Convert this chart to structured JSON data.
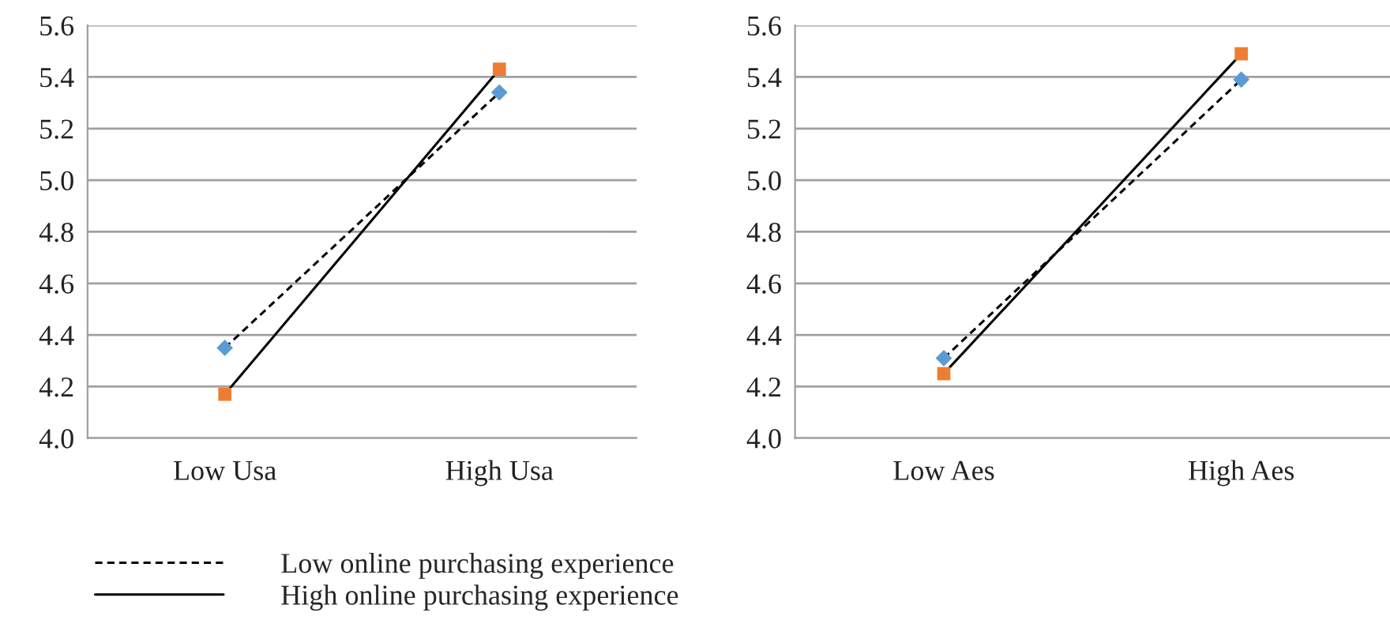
{
  "chart_data": [
    {
      "type": "line",
      "categories": [
        "Low Usa",
        "High Usa"
      ],
      "ylim": [
        4.0,
        5.6
      ],
      "yticks": [
        {
          "value": 4.0,
          "label": "4.0"
        },
        {
          "value": 4.2,
          "label": "4.2"
        },
        {
          "value": 4.4,
          "label": "4.4"
        },
        {
          "value": 4.6,
          "label": "4.6"
        },
        {
          "value": 4.8,
          "label": "4.8"
        },
        {
          "value": 5.0,
          "label": "5.0"
        },
        {
          "value": 5.2,
          "label": "5.2"
        },
        {
          "value": 5.4,
          "label": "5.4"
        },
        {
          "value": 5.6,
          "label": "5.6"
        }
      ],
      "grid": "y",
      "legend": "bottom left",
      "series": [
        {
          "name": "Low online purchasing experience",
          "color": "#000000",
          "colors": [
            "#5b9bd5",
            "#5b9bd5"
          ],
          "marker": "diamond",
          "line_style": "dashed",
          "values": [
            4.35,
            5.34
          ]
        },
        {
          "name": "High online purchasing experience",
          "color": "#000000",
          "colors": [
            "#ed7d31",
            "#ed7d31"
          ],
          "marker": "square",
          "line_style": "solid",
          "values": [
            4.17,
            5.43
          ]
        }
      ]
    },
    {
      "type": "line",
      "categories": [
        "Low Aes",
        "High Aes"
      ],
      "ylim": [
        4.0,
        5.6
      ],
      "yticks": [
        {
          "value": 4.0,
          "label": "4.0"
        },
        {
          "value": 4.2,
          "label": "4.2"
        },
        {
          "value": 4.4,
          "label": "4.4"
        },
        {
          "value": 4.6,
          "label": "4.6"
        },
        {
          "value": 4.8,
          "label": "4.8"
        },
        {
          "value": 5.0,
          "label": "5.0"
        },
        {
          "value": 5.2,
          "label": "5.2"
        },
        {
          "value": 5.4,
          "label": "5.4"
        },
        {
          "value": 5.6,
          "label": "5.6"
        }
      ],
      "grid": "y",
      "series": [
        {
          "color": "#000000",
          "colors": [
            "#5b9bd5",
            "#5b9bd5"
          ],
          "marker": "diamond",
          "line_style": "dashed",
          "values": [
            4.31,
            5.39
          ]
        },
        {
          "color": "#000000",
          "colors": [
            "#ed7d31",
            "#ed7d31"
          ],
          "marker": "square",
          "line_style": "solid",
          "values": [
            4.25,
            5.49
          ]
        }
      ]
    }
  ]
}
